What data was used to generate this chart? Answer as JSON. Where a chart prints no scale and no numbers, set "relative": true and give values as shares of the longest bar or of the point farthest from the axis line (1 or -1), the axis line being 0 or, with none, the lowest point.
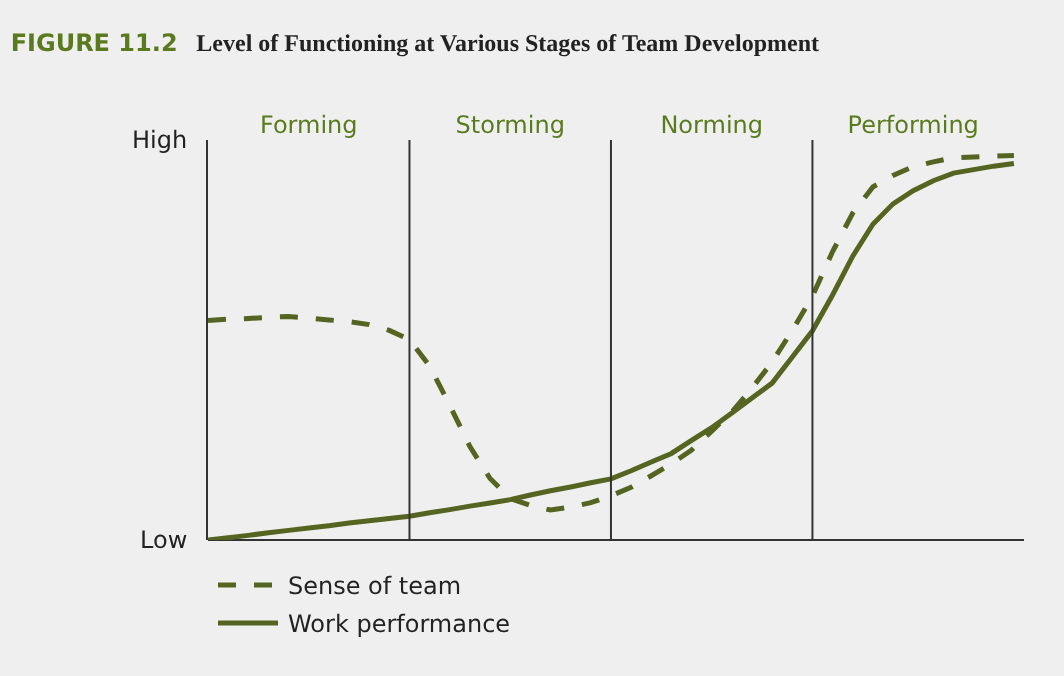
{
  "chart_data": {
    "type": "line",
    "title": "FIGURE 11.2",
    "subtitle": "Level of Functioning at Various Stages of Team Development",
    "relative": true,
    "tick_labels": "x",
    "grid": "x",
    "legend": "bottom left",
    "annotations": [
      "High",
      "Low"
    ],
    "categories": [
      null,
      null,
      null,
      null,
      null,
      "Forming",
      null,
      null,
      null,
      null,
      null,
      null,
      null,
      null,
      null,
      "Storming",
      null,
      null,
      null,
      null,
      null,
      null,
      null,
      null,
      null,
      "Norming",
      null,
      null,
      null,
      null,
      null,
      null,
      null,
      null,
      null,
      "Performing",
      null,
      null,
      null,
      null,
      null
    ],
    "series": [
      {
        "name": "Sense of team",
        "color": "#556420",
        "line_style": "dashed",
        "values": [
          0.571,
          0.574,
          0.576,
          0.579,
          0.581,
          0.577,
          0.572,
          0.568,
          0.56,
          0.545,
          0.521,
          0.452,
          0.35,
          0.243,
          0.16,
          0.108,
          0.09,
          0.078,
          0.086,
          0.097,
          0.115,
          0.137,
          0.167,
          0.198,
          0.234,
          0.283,
          0.333,
          0.395,
          0.463,
          0.545,
          0.634,
          0.75,
          0.85,
          0.918,
          0.948,
          0.971,
          0.983,
          0.994,
          0.996,
          0.998,
          1.0
        ]
      },
      {
        "name": "Work performance",
        "color": "#556420",
        "line_style": "solid",
        "values": [
          0,
          0.006,
          0.012,
          0.019,
          0.025,
          0.031,
          0.037,
          0.044,
          0.05,
          0.056,
          0.062,
          0.071,
          0.079,
          0.088,
          0.096,
          0.105,
          0.117,
          0.128,
          0.138,
          0.149,
          0.159,
          0.18,
          0.203,
          0.225,
          0.259,
          0.292,
          0.33,
          0.369,
          0.408,
          0.476,
          0.544,
          0.637,
          0.738,
          0.821,
          0.874,
          0.908,
          0.934,
          0.954,
          0.963,
          0.972,
          0.979
        ]
      }
    ]
  }
}
